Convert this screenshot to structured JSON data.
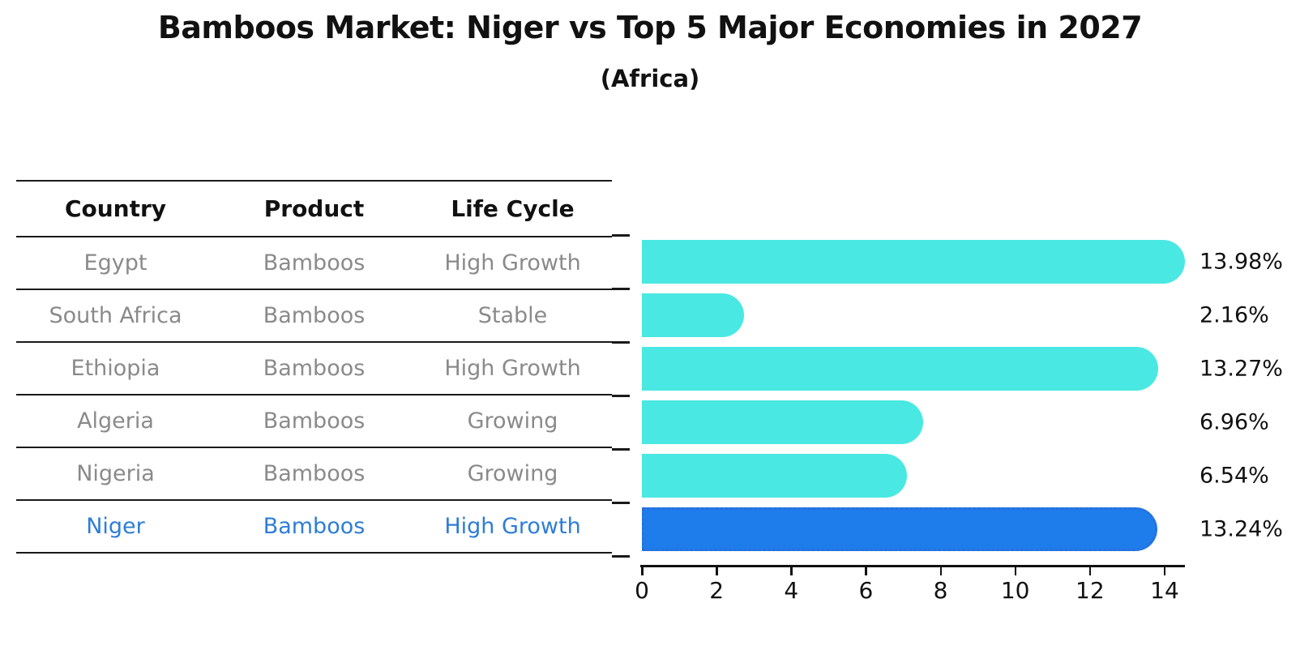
{
  "title": "Bamboos Market: Niger vs Top 5 Major Economies in 2027",
  "subtitle": "(Africa)",
  "table": {
    "columns": [
      "Country",
      "Product",
      "Life Cycle"
    ],
    "rows": [
      {
        "country": "Egypt",
        "product": "Bamboos",
        "life_cycle": "High Growth",
        "highlight": false
      },
      {
        "country": "South Africa",
        "product": "Bamboos",
        "life_cycle": "Stable",
        "highlight": false
      },
      {
        "country": "Ethiopia",
        "product": "Bamboos",
        "life_cycle": "High Growth",
        "highlight": false
      },
      {
        "country": "Algeria",
        "product": "Bamboos",
        "life_cycle": "Growing",
        "highlight": false
      },
      {
        "country": "Nigeria",
        "product": "Bamboos",
        "life_cycle": "Growing",
        "highlight": false
      },
      {
        "country": "Niger",
        "product": "Bamboos",
        "life_cycle": "High Growth",
        "highlight": true
      }
    ]
  },
  "chart_data": {
    "type": "bar",
    "orientation": "horizontal",
    "title": "Bamboos Market: Niger vs Top 5 Major Economies in 2027",
    "subtitle": "(Africa)",
    "categories": [
      "Egypt",
      "South Africa",
      "Ethiopia",
      "Algeria",
      "Nigeria",
      "Niger"
    ],
    "values": [
      13.98,
      2.16,
      13.27,
      6.96,
      6.54,
      13.24
    ],
    "value_labels": [
      "13.98%",
      "2.16%",
      "13.27%",
      "6.96%",
      "6.54%",
      "13.24%"
    ],
    "x_ticks": [
      "0",
      "2",
      "4",
      "6",
      "8",
      "10",
      "12",
      "14"
    ],
    "x_tick_values": [
      0,
      2,
      4,
      6,
      8,
      10,
      12,
      14
    ],
    "xlim": [
      0,
      14.6
    ],
    "grid": false,
    "legend": false,
    "highlight_index": 5,
    "bar_color": "#4ae8e2",
    "highlight_bar_color": "#1e7ceb",
    "highlight_text_color": "#2e7dd6"
  }
}
